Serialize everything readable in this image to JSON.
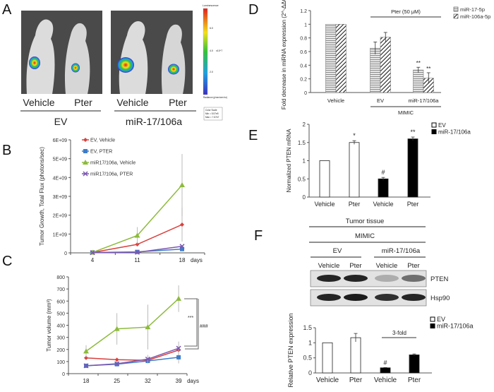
{
  "panel_labels": {
    "a": "A",
    "b": "B",
    "c": "C",
    "d": "D",
    "e": "E",
    "f": "F"
  },
  "panel_a": {
    "lane_labels": [
      "Vehicle",
      "Pter",
      "Vehicle",
      "Pter"
    ],
    "group_labels": [
      "EV",
      "miR-17/106a"
    ],
    "colorbar": {
      "title": "Luminescence",
      "ticks": [
        "6.0",
        "4.0",
        "2.0"
      ],
      "unit": "x10^7",
      "footer": "Radiance (p/sec/cm²/sr)",
      "scale_box": [
        "Color Scale",
        "Min = 5.57e5",
        "Max = 7.67e7"
      ]
    },
    "colors": {
      "low": "#3b2fc0",
      "high": "#e0201b"
    }
  },
  "panel_f_blot": {
    "header": "Tumor tissue",
    "subheader": "MIMIC",
    "groups": [
      "EV",
      "miR-17/106a"
    ],
    "lanes": [
      "Vehicle",
      "Pter",
      "Vehicle",
      "Pter"
    ],
    "bands": [
      "PTEN",
      "Hsp90"
    ],
    "band_intensity": {
      "PTEN": [
        0.9,
        0.9,
        0.25,
        0.55
      ],
      "Hsp90": [
        0.9,
        0.95,
        0.85,
        0.9
      ]
    }
  },
  "chart_data": [
    {
      "id": "B",
      "type": "line",
      "ylabel": "Tumor Growth, Total Flux (photons/sec)",
      "xlabel": "days",
      "x": [
        4,
        11,
        18
      ],
      "x_tick_labels": [
        "4",
        "11",
        "18"
      ],
      "ylim": [
        0,
        6000000000
      ],
      "y_tick_labels": [
        "0",
        "1E+09",
        "2E+09",
        "3E+09",
        "4E+09",
        "5E+09",
        "6E+09"
      ],
      "legend_position": "top-left",
      "series": [
        {
          "name": "EV, Vehicle",
          "color": "#d9413d",
          "marker": "diamond",
          "values": [
            20000000,
            450000000,
            1500000000
          ],
          "errors": [
            0,
            0,
            900000000
          ]
        },
        {
          "name": "EV, PTER",
          "color": "#3e7cc9",
          "marker": "square",
          "values": [
            20000000,
            50000000,
            200000000
          ],
          "errors": [
            0,
            0,
            0
          ]
        },
        {
          "name": "miR17/106a, Vehicle",
          "color": "#8dbb3c",
          "marker": "triangle",
          "values": [
            20000000,
            920000000,
            3600000000
          ],
          "errors": [
            0,
            450000000,
            1650000000
          ]
        },
        {
          "name": "miR17/106a, PTER",
          "color": "#7b57b0",
          "marker": "x",
          "values": [
            10000000,
            30000000,
            350000000
          ],
          "errors": [
            0,
            0,
            0
          ]
        }
      ]
    },
    {
      "id": "C",
      "type": "line",
      "ylabel": "Tumor volume (mm³)",
      "xlabel": "days",
      "x": [
        18,
        25,
        32,
        39
      ],
      "x_tick_labels": [
        "18",
        "25",
        "32",
        "39"
      ],
      "ylim": [
        0,
        800
      ],
      "y_tick_labels": [
        "0",
        "100",
        "200",
        "300",
        "400",
        "500",
        "600",
        "700",
        "800"
      ],
      "annotations": [
        "***",
        "###"
      ],
      "series": [
        {
          "name": "EV, Vehicle",
          "color": "#d9413d",
          "marker": "diamond",
          "values": [
            130,
            115,
            110,
            195
          ],
          "errors": [
            0,
            0,
            0,
            0
          ]
        },
        {
          "name": "EV, PTER",
          "color": "#3e7cc9",
          "marker": "square",
          "values": [
            65,
            78,
            105,
            135
          ],
          "errors": [
            0,
            0,
            0,
            50
          ]
        },
        {
          "name": "miR17/106a, Vehicle",
          "color": "#8dbb3c",
          "marker": "triangle",
          "values": [
            185,
            370,
            385,
            620
          ],
          "errors": [
            50,
            130,
            185,
            110
          ]
        },
        {
          "name": "miR17/106a, PTER",
          "color": "#7b57b0",
          "marker": "x",
          "values": [
            65,
            82,
            120,
            210
          ],
          "errors": [
            0,
            0,
            35,
            55
          ]
        }
      ]
    },
    {
      "id": "D",
      "type": "bar",
      "ylabel": "Fold decrease in miRNA expression (2^-ΔΔCt)",
      "categories": [
        "Vehicle",
        "EV",
        "miR-17/106a"
      ],
      "ylim": [
        0,
        1.2
      ],
      "y_tick_labels": [
        "0",
        "0.2",
        "0.4",
        "0.6",
        "0.8",
        "1",
        "1.2"
      ],
      "top_bracket": "Pter (50 μM)",
      "bottom_bracket": "MIMIC",
      "legend_position": "top-right",
      "series": [
        {
          "name": "miR-17-5p",
          "pattern": "horizontal-lines",
          "values": [
            1,
            0.65,
            0.33
          ],
          "errors": [
            0,
            0.09,
            0.04
          ],
          "annotations": [
            "",
            "",
            "**"
          ]
        },
        {
          "name": "miR-106a-5p",
          "pattern": "diagonal-lines",
          "values": [
            1,
            0.81,
            0.21
          ],
          "errors": [
            0,
            0.07,
            0.08
          ],
          "annotations": [
            "",
            "",
            "**"
          ]
        }
      ]
    },
    {
      "id": "E",
      "type": "bar",
      "ylabel": "Normalized PTEN mRNA",
      "categories": [
        "Vehicle",
        "Pter",
        "Vehicle",
        "Pter"
      ],
      "groups": [
        "EV",
        "EV",
        "miR-17/106a",
        "miR-17/106a"
      ],
      "ylim": [
        0,
        2
      ],
      "y_tick_labels": [
        "0",
        "0.5",
        "1",
        "1.5",
        "2"
      ],
      "values": [
        1,
        1.5,
        0.5,
        1.6
      ],
      "errors": [
        0,
        0.05,
        0.04,
        0.05
      ],
      "annotations": [
        "",
        "*",
        "#",
        "**"
      ],
      "legend": [
        {
          "name": "EV",
          "fill": "#ffffff"
        },
        {
          "name": "miR-17/106a",
          "fill": "#000000"
        }
      ],
      "legend_position": "top-right"
    },
    {
      "id": "F",
      "type": "bar",
      "ylabel": "Relative PTEN expression",
      "categories": [
        "Vehicle",
        "Pter",
        "Vehicle",
        "Pter"
      ],
      "groups": [
        "EV",
        "EV",
        "miR-17/106a",
        "miR-17/106a"
      ],
      "ylim": [
        0,
        1.5
      ],
      "y_tick_labels": [
        "0",
        "0.5",
        "1",
        "1.5"
      ],
      "values": [
        1,
        1.17,
        0.17,
        0.6
      ],
      "errors": [
        0,
        0.14,
        0.01,
        0.03
      ],
      "annotations": [
        "",
        "",
        "#",
        ""
      ],
      "bracket_label": "3-fold",
      "legend": [
        {
          "name": "EV",
          "fill": "#ffffff"
        },
        {
          "name": "miR-17/106a",
          "fill": "#000000"
        }
      ],
      "legend_position": "top-right"
    }
  ]
}
